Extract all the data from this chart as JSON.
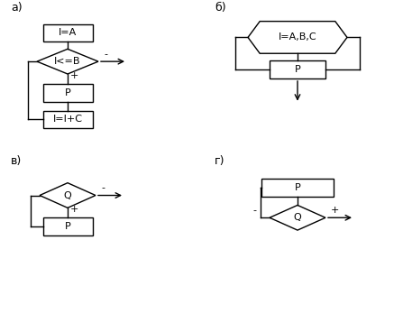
{
  "bg_color": "#ffffff",
  "label_a": "а)",
  "label_b": "б)",
  "label_v": "в)",
  "label_g": "г)",
  "text_IA": "I=A",
  "text_IB": "I<=B",
  "text_P": "P",
  "text_IIC": "I=I+C",
  "text_IABC": "I=A,B,C",
  "text_P2": "P",
  "text_Q": "Q",
  "text_P3": "P",
  "text_P4": "P",
  "text_Q2": "Q",
  "minus": "-",
  "plus": "+"
}
